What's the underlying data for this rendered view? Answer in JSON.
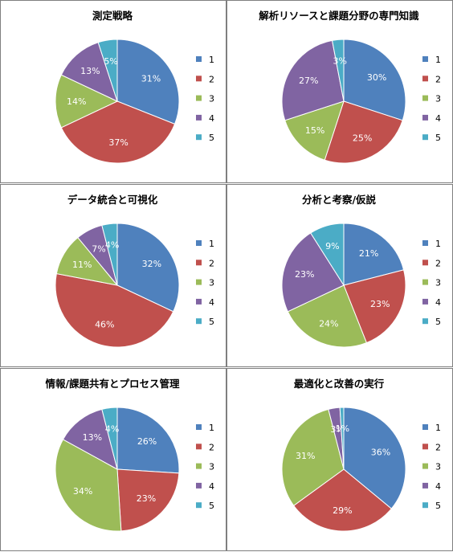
{
  "colors": [
    "#4f81bd",
    "#c0504d",
    "#9bbb59",
    "#8064a2",
    "#4bacc6"
  ],
  "chart_data": [
    {
      "type": "pie",
      "title": "測定戦略",
      "categories": [
        "1",
        "2",
        "3",
        "4",
        "5"
      ],
      "values": [
        31,
        37,
        14,
        13,
        5
      ],
      "labels": [
        "31%",
        "37%",
        "14%",
        "13%",
        "5%"
      ],
      "legend": "right"
    },
    {
      "type": "pie",
      "title": "解析リソースと課題分野の専門知識",
      "categories": [
        "1",
        "2",
        "3",
        "4",
        "5"
      ],
      "values": [
        30,
        25,
        15,
        27,
        3
      ],
      "labels": [
        "30%",
        "25%",
        "15%",
        "27%",
        "3%"
      ],
      "legend": "right"
    },
    {
      "type": "pie",
      "title": "データ統合と可視化",
      "categories": [
        "1",
        "2",
        "3",
        "4",
        "5"
      ],
      "values": [
        32,
        46,
        11,
        7,
        4
      ],
      "labels": [
        "32%",
        "46%",
        "11%",
        "7%",
        "4%"
      ],
      "legend": "right"
    },
    {
      "type": "pie",
      "title": "分析と考察/仮説",
      "categories": [
        "1",
        "2",
        "3",
        "4",
        "5"
      ],
      "values": [
        21,
        23,
        24,
        23,
        9
      ],
      "labels": [
        "21%",
        "23%",
        "24%",
        "23%",
        "9%"
      ],
      "legend": "right"
    },
    {
      "type": "pie",
      "title": "情報/課題共有とプロセス管理",
      "categories": [
        "1",
        "2",
        "3",
        "4",
        "5"
      ],
      "values": [
        26,
        23,
        34,
        13,
        4
      ],
      "labels": [
        "26%",
        "23%",
        "34%",
        "13%",
        "4%"
      ],
      "legend": "right"
    },
    {
      "type": "pie",
      "title": "最適化と改善の実行",
      "categories": [
        "1",
        "2",
        "3",
        "4",
        "5"
      ],
      "values": [
        36,
        29,
        31,
        3,
        1
      ],
      "labels": [
        "36%",
        "29%",
        "31%",
        "3%",
        "1%"
      ],
      "legend": "right"
    }
  ]
}
